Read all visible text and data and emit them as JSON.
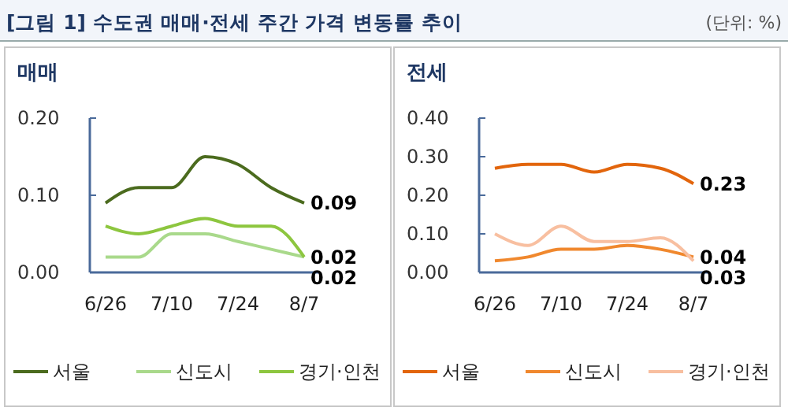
{
  "chart_data": [
    {
      "type": "line",
      "title": "매매",
      "annotations": [
        "[그림 1] 수도권 매매·전세 주간 가격 변동률 추이",
        "(단위: %)"
      ],
      "categories": [
        "6/26",
        null,
        "7/10",
        null,
        "7/24",
        null,
        "8/7"
      ],
      "ylim": [
        0,
        0.2
      ],
      "yticks": [
        {
          "value": 0,
          "label": "0.00"
        },
        {
          "value": 0.1,
          "label": "0.10"
        },
        {
          "value": 0.2,
          "label": "0.20"
        }
      ],
      "grid": false,
      "legend": "bottom",
      "marker": "none",
      "line_style": "solid",
      "series": [
        {
          "name": "서울",
          "color": "#4b6b1e",
          "values": [
            0.09,
            0.11,
            0.11,
            0.15,
            0.14,
            0.11,
            0.09
          ],
          "value_labels": [
            null,
            null,
            null,
            null,
            null,
            null,
            "0.09"
          ]
        },
        {
          "name": "신도시",
          "color": "#a9d98b",
          "values": [
            0.02,
            0.02,
            0.05,
            0.05,
            0.04,
            0.03,
            0.02
          ],
          "value_labels": [
            null,
            null,
            null,
            null,
            null,
            null,
            "0.02"
          ]
        },
        {
          "name": "경기·인천",
          "color": "#8dc63f",
          "values": [
            0.06,
            0.05,
            0.06,
            0.07,
            0.06,
            0.06,
            0.02
          ],
          "value_labels": [
            null,
            null,
            null,
            null,
            null,
            null,
            "0.02"
          ]
        }
      ]
    },
    {
      "type": "line",
      "title": "전세",
      "categories": [
        "6/26",
        null,
        "7/10",
        null,
        "7/24",
        null,
        "8/7"
      ],
      "ylim": [
        0,
        0.4
      ],
      "yticks": [
        {
          "value": 0,
          "label": "0.00"
        },
        {
          "value": 0.1,
          "label": "0.10"
        },
        {
          "value": 0.2,
          "label": "0.20"
        },
        {
          "value": 0.3,
          "label": "0.30"
        },
        {
          "value": 0.4,
          "label": "0.40"
        }
      ],
      "grid": false,
      "legend": "bottom",
      "marker": "none",
      "line_style": "solid",
      "series": [
        {
          "name": "서울",
          "color": "#e2650c",
          "values": [
            0.27,
            0.28,
            0.28,
            0.26,
            0.28,
            0.27,
            0.23
          ],
          "value_labels": [
            null,
            null,
            null,
            null,
            null,
            null,
            "0.23"
          ]
        },
        {
          "name": "신도시",
          "color": "#f0882e",
          "values": [
            0.03,
            0.04,
            0.06,
            0.06,
            0.07,
            0.06,
            0.04
          ],
          "value_labels": [
            null,
            null,
            null,
            null,
            null,
            null,
            "0.04"
          ]
        },
        {
          "name": "경기·인천",
          "color": "#f8bfa0",
          "values": [
            0.1,
            0.07,
            0.12,
            0.08,
            0.08,
            0.09,
            0.03
          ],
          "value_labels": [
            null,
            null,
            null,
            null,
            null,
            null,
            "0.03"
          ]
        }
      ]
    }
  ]
}
